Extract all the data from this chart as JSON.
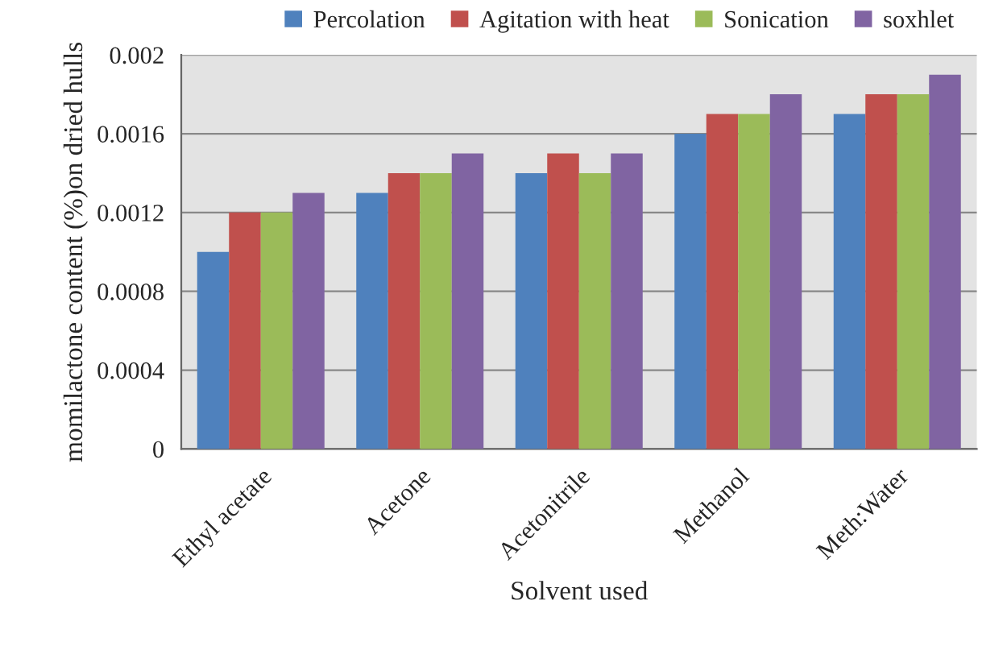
{
  "chart_data": {
    "type": "bar",
    "xlabel": "Solvent used",
    "ylabel": "momilactone content (%)on dried hulls",
    "categories": [
      "Ethyl acetate",
      "Acetone",
      "Acetonitrile",
      "Methanol",
      "Meth:Water"
    ],
    "series": [
      {
        "name": "Percolation",
        "color": "#4f81bd",
        "values": [
          0.001,
          0.0013,
          0.0014,
          0.0016,
          0.0017
        ]
      },
      {
        "name": "Agitation with heat",
        "color": "#c0504d",
        "values": [
          0.0012,
          0.0014,
          0.0015,
          0.0017,
          0.0018
        ]
      },
      {
        "name": "Sonication",
        "color": "#9bbb59",
        "values": [
          0.0012,
          0.0014,
          0.0014,
          0.0017,
          0.0018
        ]
      },
      {
        "name": "soxhlet",
        "color": "#8064a2",
        "values": [
          0.0013,
          0.0015,
          0.0015,
          0.0018,
          0.0019
        ]
      }
    ],
    "ylim": [
      0,
      0.002
    ],
    "yticks": [
      0,
      0.0004,
      0.0008,
      0.0012,
      0.0016,
      0.002
    ],
    "grid": "y",
    "legend": "top"
  }
}
